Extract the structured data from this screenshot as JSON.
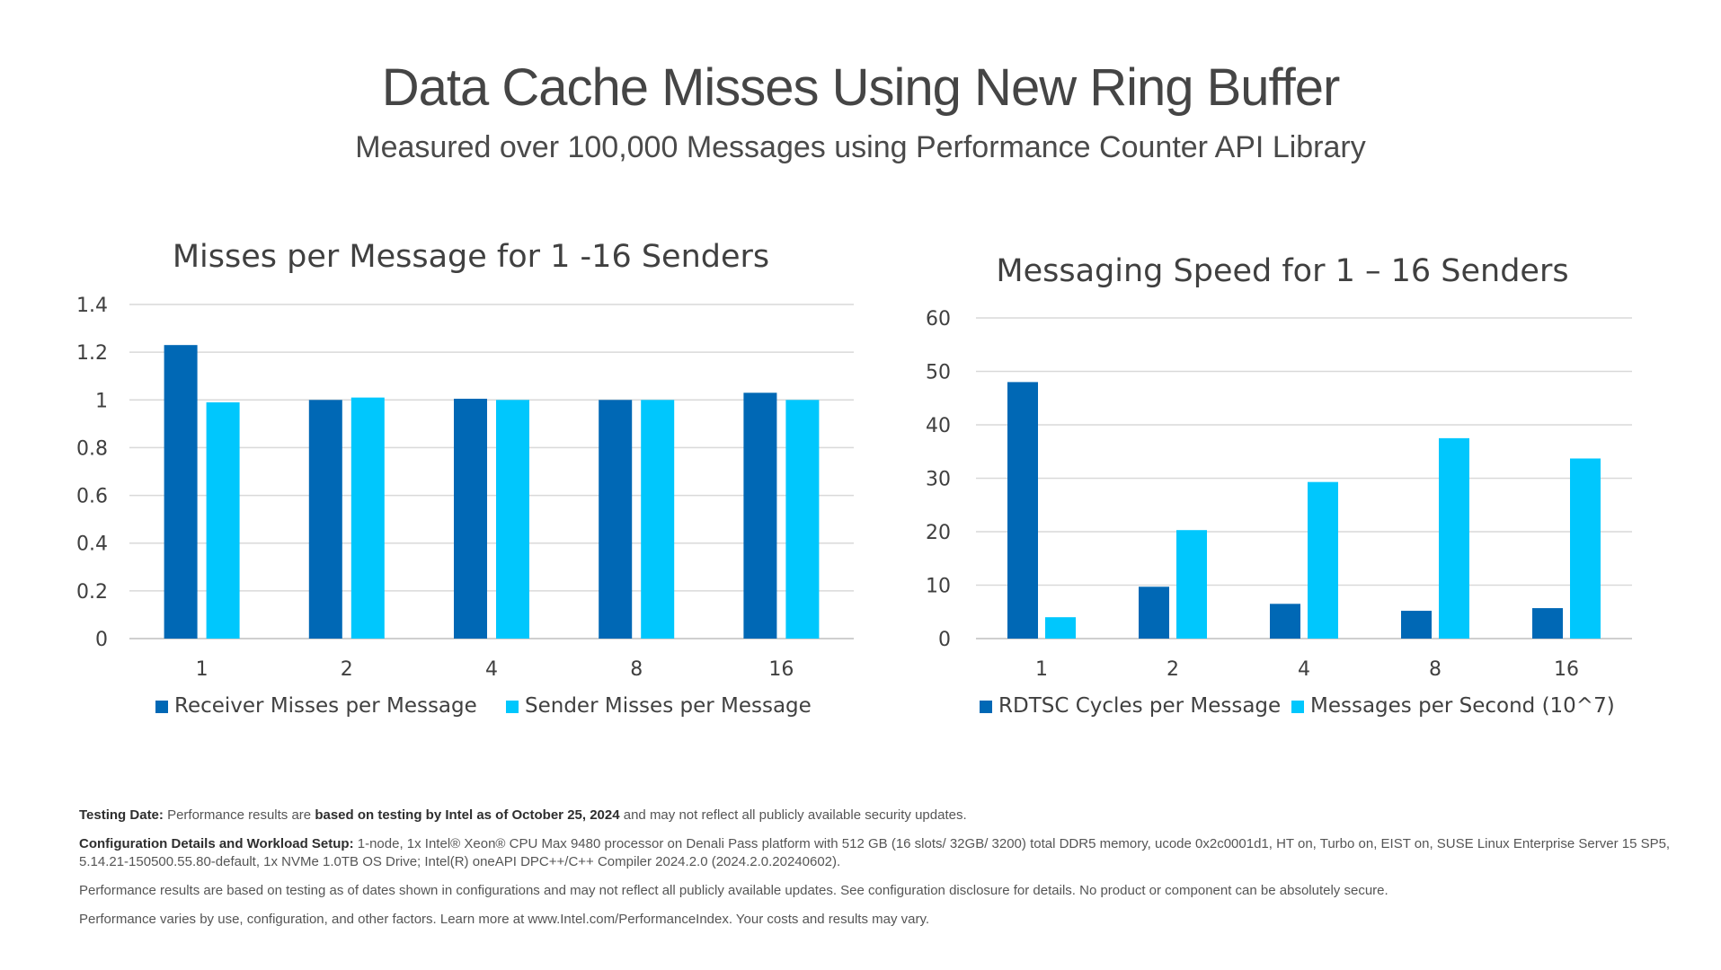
{
  "header": {
    "title": "Data Cache Misses Using New Ring Buffer",
    "subtitle": "Measured over 100,000 Messages using Performance Counter API Library"
  },
  "colors": {
    "dark": "#0068b5",
    "light": "#00c7fd",
    "grid": "#d9d9d9",
    "axis": "#bfbfbf",
    "text": "#404040"
  },
  "chart_data": [
    {
      "type": "bar",
      "title": "Misses per Message for 1 -16 Senders",
      "categories": [
        "1",
        "2",
        "4",
        "8",
        "16"
      ],
      "yticks": [
        "0",
        "0.2",
        "0.4",
        "0.6",
        "0.8",
        "1",
        "1.2",
        "1.4"
      ],
      "ylim": [
        0,
        1.4
      ],
      "grid": true,
      "legend_position": "bottom",
      "series": [
        {
          "name": "Receiver Misses per Message",
          "color": "#0068b5",
          "values": [
            1.23,
            1.0,
            1.005,
            1.0,
            1.03
          ]
        },
        {
          "name": "Sender Misses per Message",
          "color": "#00c7fd",
          "values": [
            0.99,
            1.01,
            1.0,
            1.0,
            1.0
          ]
        }
      ]
    },
    {
      "type": "bar",
      "title": "Messaging Speed for 1 – 16 Senders",
      "categories": [
        "1",
        "2",
        "4",
        "8",
        "16"
      ],
      "yticks": [
        "0",
        "10",
        "20",
        "30",
        "40",
        "50",
        "60"
      ],
      "ylim": [
        0,
        60
      ],
      "grid": true,
      "legend_position": "bottom",
      "series": [
        {
          "name": "RDTSC Cycles per Message",
          "color": "#0068b5",
          "values": [
            48,
            9.7,
            6.5,
            5.2,
            5.7
          ]
        },
        {
          "name": "Messages per Second (10^7)",
          "color": "#00c7fd",
          "values": [
            4.0,
            20.3,
            29.3,
            37.5,
            33.7
          ]
        }
      ]
    }
  ],
  "footer": {
    "testing_label": "Testing Date:",
    "testing_text_a": "Performance results are ",
    "testing_bold": "based on testing by Intel as of October 25, 2024",
    "testing_text_b": " and may not reflect all publicly available security updates.",
    "config_label": "Configuration Details and Workload Setup:",
    "config_text": "1-node, 1x Intel® Xeon® CPU Max 9480 processor on Denali Pass platform with 512 GB (16 slots/ 32GB/ 3200) total DDR5 memory, ucode 0x2c0001d1, HT on, Turbo on, EIST on, SUSE Linux Enterprise Server 15 SP5, 5.14.21-150500.55.80-default, 1x NVMe 1.0TB OS Drive; Intel(R) oneAPI DPC++/C++ Compiler 2024.2.0 (2024.2.0.20240602).",
    "disclaimer": "Performance results are based on testing as of dates shown in configurations and may not reflect all publicly available updates. See configuration disclosure for details.  No product or component can be absolutely secure.",
    "varies": "Performance varies by use, configuration, and other factors. Learn more at www.Intel.com/PerformanceIndex. Your costs and results may vary."
  }
}
